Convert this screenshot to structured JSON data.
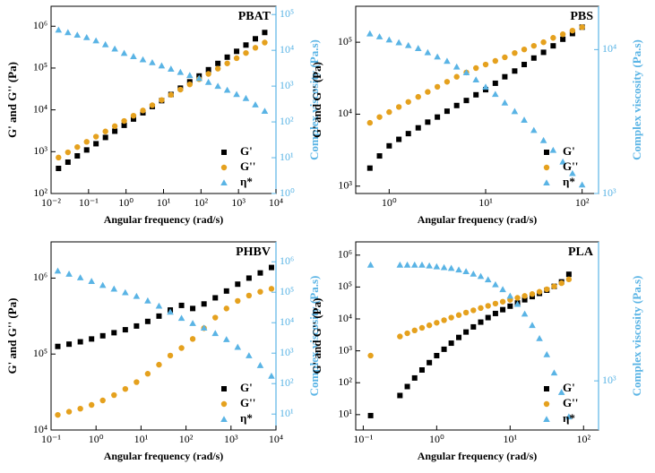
{
  "chart_data": [
    {
      "type": "scatter",
      "title": "PBAT",
      "xlabel": "Angular frequency (rad/s)",
      "ylabel": "G' and G'' (Pa)",
      "y2label": "Complex viscosity (Pa.s)",
      "xscale": "log",
      "yscale": "log",
      "y2scale": "log",
      "legend": "lower right",
      "xlim": [
        0.01,
        10000
      ],
      "xticks": [
        {
          "value": 0.01,
          "label": "10⁻²"
        },
        {
          "value": 0.1,
          "label": "10⁻¹"
        },
        {
          "value": 1,
          "label": "10⁰"
        },
        {
          "value": 10,
          "label": "10¹"
        },
        {
          "value": 100,
          "label": "10²"
        },
        {
          "value": 1000,
          "label": "10³"
        },
        {
          "value": 10000,
          "label": "10⁴"
        }
      ],
      "ylim": [
        100,
        3000000
      ],
      "yticks": [
        {
          "value": 100,
          "label": "10²"
        },
        {
          "value": 1000,
          "label": "10³"
        },
        {
          "value": 10000,
          "label": "10⁴"
        },
        {
          "value": 100000,
          "label": "10⁵"
        },
        {
          "value": 1000000,
          "label": "10⁶"
        }
      ],
      "y2lim": [
        1,
        170000
      ],
      "y2ticks": [
        {
          "value": 1,
          "label": "10⁰"
        },
        {
          "value": 10,
          "label": "10¹"
        },
        {
          "value": 100,
          "label": "10²"
        },
        {
          "value": 1000,
          "label": "10³"
        },
        {
          "value": 10000,
          "label": "10⁴"
        },
        {
          "value": 100000,
          "label": "10⁵"
        }
      ],
      "x": [
        0.0158,
        0.0282,
        0.0501,
        0.0891,
        0.158,
        0.282,
        0.501,
        0.891,
        1.58,
        2.82,
        5.01,
        8.91,
        15.8,
        28.2,
        50.1,
        89.1,
        158,
        282,
        501,
        891,
        1580,
        2820,
        5010
      ],
      "series": [
        {
          "name": "G'",
          "color": "#000000",
          "marker": "square",
          "values": [
            398,
            562,
            794,
            1100,
            1550,
            2190,
            3090,
            4270,
            6030,
            8510,
            12000,
            16600,
            23400,
            33100,
            46800,
            64600,
            91200,
            129000,
            182000,
            251000,
            355000,
            501000,
            708000
          ]
        },
        {
          "name": "G''",
          "color": "#e5a11e",
          "marker": "circle",
          "values": [
            724,
            966,
            1290,
            1720,
            2290,
            3050,
            4070,
            5430,
            7240,
            9660,
            12900,
            17200,
            22900,
            30500,
            40700,
            54300,
            72400,
            96600,
            129000,
            172000,
            229000,
            305000,
            407000
          ]
        },
        {
          "name": "η*",
          "color": "#5ab4e5",
          "marker": "triangle",
          "axis": "y2",
          "values": [
            37200,
            31600,
            26900,
            22900,
            18600,
            14500,
            11000,
            8320,
            6760,
            5500,
            4570,
            3720,
            3020,
            2450,
            2000,
            1660,
            1290,
            1000,
            776,
            589,
            457,
            302,
            200
          ]
        }
      ]
    },
    {
      "type": "scatter",
      "title": "PBS",
      "xlabel": "Angular frequency (rad/s)",
      "ylabel": "G' and G'' (Pa)",
      "y2label": "Complex viscosity (Pa.s)",
      "xscale": "log",
      "yscale": "log",
      "y2scale": "log",
      "legend": "lower right",
      "xlim": [
        0.45,
        148
      ],
      "xticks": [
        {
          "value": 1,
          "label": "10⁰"
        },
        {
          "value": 10,
          "label": "10¹"
        },
        {
          "value": 100,
          "label": "10²"
        }
      ],
      "ylim": [
        790,
        316000
      ],
      "yticks": [
        {
          "value": 1000,
          "label": "10³"
        },
        {
          "value": 10000,
          "label": "10⁴"
        },
        {
          "value": 100000,
          "label": "10⁵"
        }
      ],
      "y2lim": [
        1000,
        20000
      ],
      "y2ticks": [
        {
          "value": 1000,
          "label": "10³"
        },
        {
          "value": 10000,
          "label": "10⁴"
        }
      ],
      "x": [
        0.631,
        0.794,
        1,
        1.26,
        1.58,
        2.0,
        2.51,
        3.16,
        3.98,
        5.01,
        6.31,
        7.94,
        10,
        12.6,
        15.8,
        20,
        25.1,
        31.6,
        39.8,
        50.1,
        63.1,
        79.4,
        100
      ],
      "series": [
        {
          "name": "G'",
          "color": "#000000",
          "marker": "square",
          "values": [
            1780,
            2630,
            3630,
            4470,
            5370,
            6460,
            7760,
            9120,
            11000,
            13200,
            15500,
            18600,
            21900,
            26900,
            33100,
            39800,
            49000,
            60300,
            72400,
            89100,
            110000,
            132000,
            162000
          ]
        },
        {
          "name": "G''",
          "color": "#e5a11e",
          "marker": "circle",
          "values": [
            7590,
            9120,
            10700,
            12600,
            14800,
            17400,
            20400,
            24000,
            28200,
            33100,
            38000,
            43700,
            49000,
            55000,
            61700,
            70800,
            79400,
            89100,
            100000,
            115000,
            129000,
            145000,
            162000
          ]
        },
        {
          "name": "η*",
          "color": "#5ab4e5",
          "marker": "triangle",
          "axis": "y2",
          "values": [
            12900,
            12300,
            11700,
            11200,
            10700,
            10200,
            9550,
            8910,
            8320,
            7590,
            6920,
            6170,
            5500,
            4900,
            4270,
            3720,
            3240,
            2750,
            2340,
            2000,
            1660,
            1380,
            1150
          ]
        }
      ]
    },
    {
      "type": "scatter",
      "title": "PHBV",
      "xlabel": "Angular frequency (rad/s)",
      "ylabel": "G' and G'' (Pa)",
      "y2label": "Complex viscosity (Pa.s)",
      "xscale": "log",
      "yscale": "log",
      "y2scale": "log",
      "legend": "lower right",
      "xlim": [
        0.1,
        10000
      ],
      "xticks": [
        {
          "value": 0.1,
          "label": "10⁻¹"
        },
        {
          "value": 1,
          "label": "10⁰"
        },
        {
          "value": 10,
          "label": "10¹"
        },
        {
          "value": 100,
          "label": "10²"
        },
        {
          "value": 1000,
          "label": "10³"
        },
        {
          "value": 10000,
          "label": "10⁴"
        }
      ],
      "ylim": [
        10000,
        3000000
      ],
      "yticks": [
        {
          "value": 10000,
          "label": "10⁴"
        },
        {
          "value": 100000,
          "label": "10⁵"
        },
        {
          "value": 1000000,
          "label": "10⁶"
        }
      ],
      "y2lim": [
        3,
        4500000
      ],
      "y2ticks": [
        {
          "value": 10,
          "label": "10¹"
        },
        {
          "value": 100,
          "label": "10²"
        },
        {
          "value": 1000,
          "label": "10³"
        },
        {
          "value": 10000,
          "label": "10⁴"
        },
        {
          "value": 100000,
          "label": "10⁵"
        },
        {
          "value": 1000000,
          "label": "10⁶"
        }
      ],
      "x": [
        0.141,
        0.251,
        0.447,
        0.794,
        1.41,
        2.51,
        4.47,
        7.94,
        14.1,
        25.1,
        44.7,
        79.4,
        141,
        251,
        447,
        794,
        1410,
        2510,
        4470,
        7940
      ],
      "series": [
        {
          "name": "G'",
          "color": "#000000",
          "marker": "square",
          "values": [
            126000,
            135000,
            145000,
            158000,
            174000,
            191000,
            209000,
            234000,
            269000,
            316000,
            380000,
            437000,
            398000,
            457000,
            550000,
            676000,
            832000,
            1000000,
            1170000,
            1380000
          ]
        },
        {
          "name": "G''",
          "color": "#e5a11e",
          "marker": "circle",
          "values": [
            15800,
            17400,
            19100,
            21400,
            24500,
            28800,
            34700,
            42700,
            55000,
            72400,
            95500,
            120000,
            158000,
            219000,
            302000,
            398000,
            501000,
            589000,
            661000,
            724000
          ]
        },
        {
          "name": "η*",
          "color": "#5ab4e5",
          "marker": "triangle",
          "axis": "y2",
          "values": [
            501000,
            398000,
            302000,
            229000,
            170000,
            129000,
            97700,
            74100,
            52500,
            35500,
            22400,
            14100,
            9550,
            6760,
            4470,
            2820,
            1580,
            832,
            398,
            178
          ]
        }
      ]
    },
    {
      "type": "scatter",
      "title": "PLA",
      "xlabel": "Angular frequency (rad/s)",
      "ylabel": "G' and G'' (Pa)",
      "y2label": "Complex viscosity (Pa.s)",
      "xscale": "log",
      "yscale": "log",
      "y2scale": "log",
      "legend": "lower right",
      "xlim": [
        0.079,
        160
      ],
      "xticks": [
        {
          "value": 0.1,
          "label": "10⁻¹"
        },
        {
          "value": 1,
          "label": "10⁰"
        },
        {
          "value": 10,
          "label": "10¹"
        },
        {
          "value": 100,
          "label": "10²"
        }
      ],
      "ylim": [
        3.3,
        2600000
      ],
      "yticks": [
        {
          "value": 10,
          "label": "10¹"
        },
        {
          "value": 100,
          "label": "10²"
        },
        {
          "value": 1000,
          "label": "10³"
        },
        {
          "value": 10000,
          "label": "10⁴"
        },
        {
          "value": 100000,
          "label": "10⁵"
        },
        {
          "value": 1000000,
          "label": "10⁶"
        }
      ],
      "y2lim": [
        500,
        7100
      ],
      "y2ticks": [
        {
          "value": 1000,
          "label": "10³"
        }
      ],
      "x": [
        0.126,
        0.316,
        0.398,
        0.501,
        0.631,
        0.794,
        1,
        1.26,
        1.58,
        2.0,
        2.51,
        3.16,
        3.98,
        5.01,
        6.31,
        7.94,
        10,
        12.6,
        15.8,
        20,
        25.1,
        31.6,
        39.8,
        50.1,
        63.1
      ],
      "series": [
        {
          "name": "G'",
          "color": "#000000",
          "marker": "square",
          "values": [
            9.33,
            39.8,
            75.9,
            141,
            251,
            427,
            708,
            1120,
            1740,
            2630,
            3890,
            5620,
            7940,
            11000,
            14800,
            19500,
            25100,
            31600,
            39800,
            50100,
            63100,
            79400,
            105000,
            145000,
            251000
          ]
        },
        {
          "name": "G''",
          "color": "#e5a11e",
          "marker": "circle",
          "values": [
            708,
            2820,
            3550,
            4370,
            5250,
            6310,
            7590,
            9120,
            11000,
            13200,
            15800,
            18600,
            21900,
            25700,
            30200,
            34700,
            39800,
            45700,
            52500,
            60300,
            70800,
            85100,
            105000,
            132000,
            174000
          ]
        },
        {
          "name": "η*",
          "color": "#5ab4e5",
          "marker": "triangle",
          "axis": "y2",
          "values": [
            5130,
            5130,
            5130,
            5130,
            5130,
            5070,
            5010,
            4950,
            4900,
            4790,
            4680,
            4520,
            4370,
            4170,
            3890,
            3630,
            3310,
            2950,
            2570,
            2190,
            1820,
            1450,
            1120,
            851,
            603
          ]
        }
      ]
    }
  ]
}
